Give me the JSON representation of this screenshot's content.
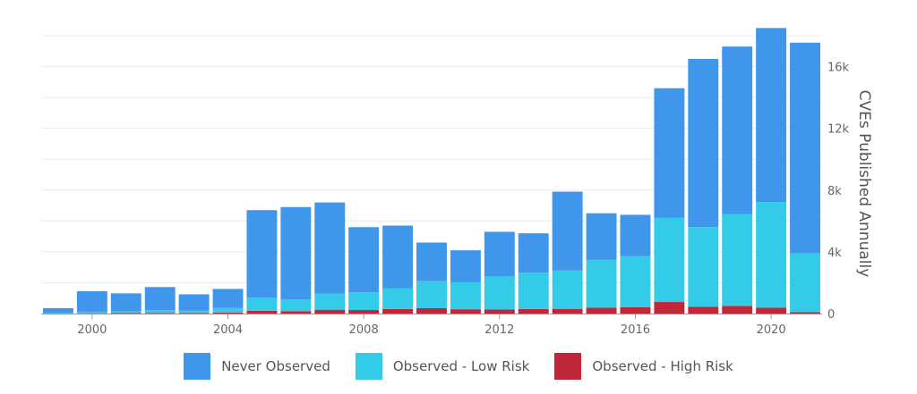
{
  "chart_data": {
    "type": "bar",
    "stacked": true,
    "title": "",
    "xlabel": "",
    "ylabel": "CVEs Published Annually",
    "y_axis_position": "right",
    "x": [
      1999,
      2000,
      2001,
      2002,
      2003,
      2004,
      2005,
      2006,
      2007,
      2008,
      2009,
      2010,
      2011,
      2012,
      2013,
      2014,
      2015,
      2016,
      2017,
      2018,
      2019,
      2020,
      2021
    ],
    "xlim": [
      1998.5,
      2021.5
    ],
    "x_ticks": [
      "2000",
      "2004",
      "2008",
      "2012",
      "2016",
      "2020"
    ],
    "x_tick_values": [
      2000,
      2004,
      2008,
      2012,
      2016,
      2020
    ],
    "ylim": [
      0,
      18000
    ],
    "y_ticks": [
      "0",
      "4k",
      "8k",
      "12k",
      "16k"
    ],
    "y_tick_values": [
      0,
      4000,
      8000,
      12000,
      16000
    ],
    "grid": true,
    "legend_position": "bottom-center",
    "series": [
      {
        "name": "Observed - High Risk",
        "color": "#c0283a",
        "values": [
          5,
          20,
          30,
          40,
          40,
          60,
          180,
          160,
          250,
          230,
          300,
          350,
          280,
          260,
          300,
          290,
          380,
          420,
          750,
          450,
          500,
          380,
          90
        ]
      },
      {
        "name": "Observed - Low Risk",
        "color": "#33cbe8",
        "values": [
          30,
          100,
          120,
          180,
          150,
          300,
          850,
          750,
          1050,
          1150,
          1350,
          1750,
          1750,
          2150,
          2350,
          2500,
          3100,
          3300,
          5450,
          5150,
          5950,
          6850,
          3810
        ]
      },
      {
        "name": "Never Observed",
        "color": "#3f96ea",
        "values": [
          315,
          1330,
          1160,
          1500,
          1060,
          1240,
          5670,
          5990,
          5900,
          4220,
          4050,
          2500,
          2070,
          2890,
          2550,
          5110,
          3020,
          2680,
          8400,
          10900,
          10850,
          11270,
          13650
        ]
      }
    ]
  },
  "legend": {
    "items": [
      {
        "label": "Never Observed",
        "color": "#3f96ea"
      },
      {
        "label": "Observed - Low Risk",
        "color": "#33cbe8"
      },
      {
        "label": "Observed - High Risk",
        "color": "#c0283a"
      }
    ]
  }
}
